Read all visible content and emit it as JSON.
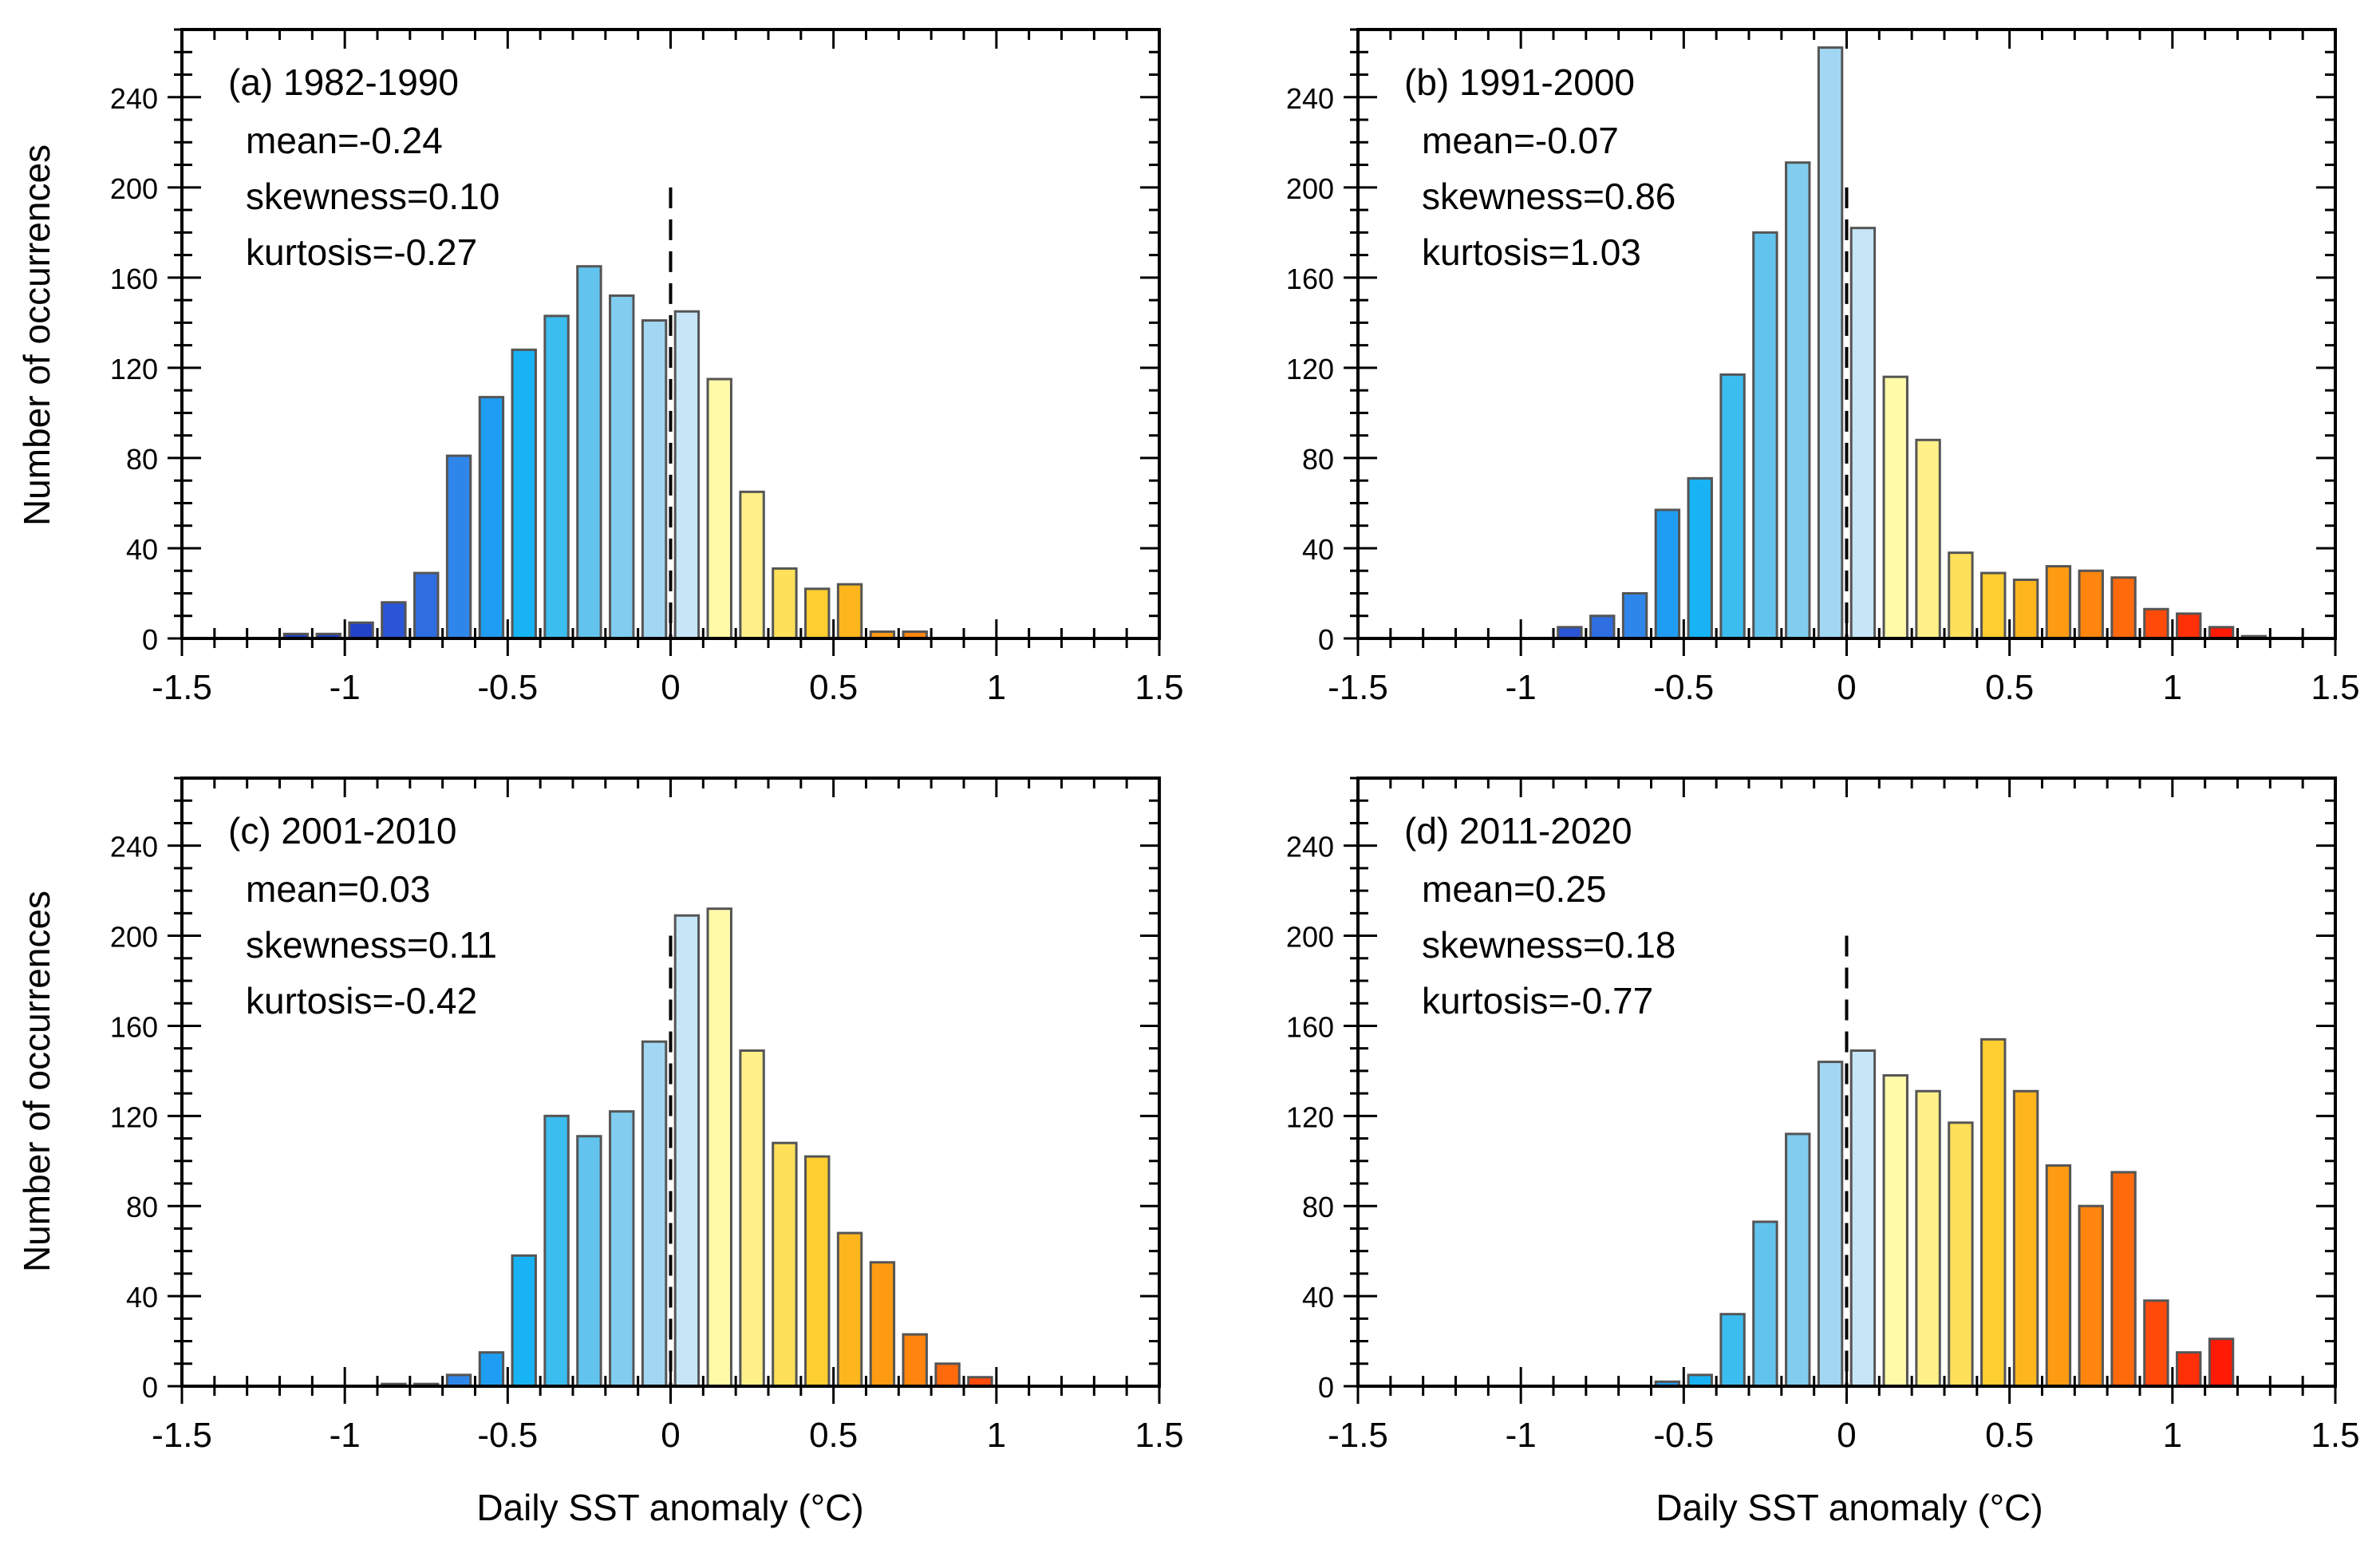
{
  "figure": {
    "ylabel": "Number of occurrences",
    "xlabel": "Daily SST anomaly (°C)"
  },
  "chart_data": [
    {
      "type": "bar",
      "panel_label": "(a) 1982-1990",
      "stats": [
        "mean=-0.24",
        "skewness=0.10",
        "kurtosis=-0.27"
      ],
      "x": [
        -1.15,
        -1.05,
        -0.95,
        -0.85,
        -0.75,
        -0.65,
        -0.55,
        -0.45,
        -0.35,
        -0.25,
        -0.15,
        -0.05,
        0.05,
        0.15,
        0.25,
        0.35,
        0.45,
        0.55,
        0.65,
        0.75
      ],
      "values": [
        2,
        2,
        7,
        16,
        29,
        81,
        107,
        128,
        143,
        165,
        152,
        141,
        145,
        115,
        65,
        31,
        22,
        24,
        3,
        3
      ],
      "xlim": [
        -1.5,
        1.5
      ],
      "ylim": [
        0,
        270
      ],
      "xticks": [
        "-1.5",
        "-1",
        "-0.5",
        "0",
        "0.5",
        "1",
        "1.5"
      ],
      "yticks": [
        "0",
        "40",
        "80",
        "120",
        "160",
        "200",
        "240"
      ],
      "mean_marker_x": 0,
      "mean_marker_top": 200
    },
    {
      "type": "bar",
      "panel_label": "(b) 1991-2000",
      "stats": [
        "mean=-0.07",
        "skewness=0.86",
        "kurtosis=1.03"
      ],
      "x": [
        -0.85,
        -0.75,
        -0.65,
        -0.55,
        -0.45,
        -0.35,
        -0.25,
        -0.15,
        -0.05,
        0.05,
        0.15,
        0.25,
        0.35,
        0.45,
        0.55,
        0.65,
        0.75,
        0.85,
        0.95,
        1.05,
        1.15,
        1.25
      ],
      "values": [
        5,
        10,
        20,
        57,
        71,
        117,
        180,
        211,
        262,
        182,
        116,
        88,
        38,
        29,
        26,
        32,
        30,
        27,
        13,
        11,
        5,
        1
      ],
      "xlim": [
        -1.5,
        1.5
      ],
      "ylim": [
        0,
        270
      ],
      "xticks": [
        "-1.5",
        "-1",
        "-0.5",
        "0",
        "0.5",
        "1",
        "1.5"
      ],
      "yticks": [
        "0",
        "40",
        "80",
        "120",
        "160",
        "200",
        "240"
      ],
      "mean_marker_x": 0,
      "mean_marker_top": 200
    },
    {
      "type": "bar",
      "panel_label": "(c) 2001-2010",
      "stats": [
        "mean=0.03",
        "skewness=0.11",
        "kurtosis=-0.42"
      ],
      "x": [
        -0.85,
        -0.75,
        -0.65,
        -0.55,
        -0.45,
        -0.35,
        -0.25,
        -0.15,
        -0.05,
        0.05,
        0.15,
        0.25,
        0.35,
        0.45,
        0.55,
        0.65,
        0.75,
        0.85,
        0.95
      ],
      "values": [
        1,
        1,
        5,
        15,
        58,
        120,
        111,
        122,
        153,
        209,
        212,
        149,
        108,
        102,
        68,
        55,
        23,
        10,
        4
      ],
      "xlim": [
        -1.5,
        1.5
      ],
      "ylim": [
        0,
        270
      ],
      "xticks": [
        "-1.5",
        "-1",
        "-0.5",
        "0",
        "0.5",
        "1",
        "1.5"
      ],
      "yticks": [
        "0",
        "40",
        "80",
        "120",
        "160",
        "200",
        "240"
      ],
      "mean_marker_x": 0,
      "mean_marker_top": 200
    },
    {
      "type": "bar",
      "panel_label": "(d) 2011-2020",
      "stats": [
        "mean=0.25",
        "skewness=0.18",
        "kurtosis=-0.77"
      ],
      "x": [
        -0.55,
        -0.45,
        -0.35,
        -0.25,
        -0.15,
        -0.05,
        0.05,
        0.15,
        0.25,
        0.35,
        0.45,
        0.55,
        0.65,
        0.75,
        0.85,
        0.95,
        1.05,
        1.15
      ],
      "values": [
        2,
        5,
        32,
        73,
        112,
        144,
        149,
        138,
        131,
        117,
        154,
        131,
        98,
        80,
        95,
        38,
        15,
        21
      ],
      "xlim": [
        -1.5,
        1.5
      ],
      "ylim": [
        0,
        270
      ],
      "xticks": [
        "-1.5",
        "-1",
        "-0.5",
        "0",
        "0.5",
        "1",
        "1.5"
      ],
      "yticks": [
        "0",
        "40",
        "80",
        "120",
        "160",
        "200",
        "240"
      ],
      "mean_marker_x": 0,
      "mean_marker_top": 200
    }
  ],
  "colormap": {
    "-1.15": "#1f3fc0",
    "-1.05": "#1f3fc0",
    "-0.95": "#2242c8",
    "-0.85": "#2a55d6",
    "-0.75": "#2f6ee0",
    "-0.65": "#2f86ea",
    "-0.55": "#1f9df2",
    "-0.45": "#18b3f4",
    "-0.35": "#3cbdf0",
    "-0.25": "#62c4ee",
    "-0.15": "#80cdef",
    "-0.05": "#a2d7f3",
    "0.05": "#c6e6f8",
    "0.15": "#fffaa8",
    "0.25": "#fff08a",
    "0.35": "#ffe05a",
    "0.45": "#ffce30",
    "0.55": "#ffb61e",
    "0.65": "#ff9b12",
    "0.75": "#ff850e",
    "0.85": "#ff6a0c",
    "0.95": "#ff4a0a",
    "1.05": "#ff3008",
    "1.15": "#ff1a06",
    "1.25": "#e00000"
  }
}
